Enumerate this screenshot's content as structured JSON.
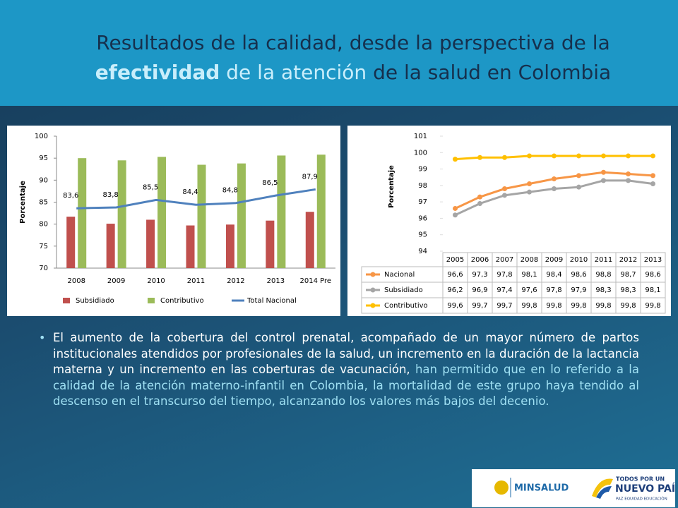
{
  "title": {
    "line1": "Resultados de la calidad, desde la perspectiva de la",
    "line2_bold": "efectividad",
    "line2_light": " de la atención",
    "line2_dark": " de la salud en Colombia"
  },
  "chart_data": [
    {
      "type": "bar",
      "y_label": "Porcentaje",
      "categories": [
        "2008",
        "2009",
        "2010",
        "2011",
        "2012",
        "2013",
        "2014 Pre"
      ],
      "series": [
        {
          "name": "Subsidiado",
          "color": "#c0504d",
          "values": [
            81.7,
            80.1,
            81.0,
            79.7,
            79.9,
            80.8,
            82.8
          ]
        },
        {
          "name": "Contributivo",
          "color": "#9bbb59",
          "values": [
            95.0,
            94.5,
            95.3,
            93.5,
            93.8,
            95.6,
            95.8
          ]
        },
        {
          "name": "Total Nacional",
          "color": "#4f81bd",
          "type": "line",
          "values": [
            83.6,
            83.8,
            85.5,
            84.4,
            84.8,
            86.5,
            87.9
          ],
          "value_labels": [
            "83,6",
            "83,8",
            "85,5",
            "84,4",
            "84,8",
            "86,5",
            "87,9"
          ]
        }
      ],
      "ylim": [
        70,
        100
      ],
      "yticks": [
        70,
        75,
        80,
        85,
        90,
        95,
        100
      ],
      "legend": "bottom"
    },
    {
      "type": "line",
      "y_label": "Porcentaje",
      "categories": [
        "2005",
        "2006",
        "2007",
        "2008",
        "2009",
        "2010",
        "2011",
        "2012",
        "2013"
      ],
      "series": [
        {
          "name": "Nacional",
          "color": "#f79646",
          "values": [
            96.6,
            97.3,
            97.8,
            98.1,
            98.4,
            98.6,
            98.8,
            98.7,
            98.6
          ],
          "value_labels": [
            "96,6",
            "97,3",
            "97,8",
            "98,1",
            "98,4",
            "98,6",
            "98,8",
            "98,7",
            "98,6"
          ]
        },
        {
          "name": "Subsidiado",
          "color": "#a5a5a5",
          "values": [
            96.2,
            96.9,
            97.4,
            97.6,
            97.8,
            97.9,
            98.3,
            98.3,
            98.1
          ],
          "value_labels": [
            "96,2",
            "96,9",
            "97,4",
            "97,6",
            "97,8",
            "97,9",
            "98,3",
            "98,3",
            "98,1"
          ]
        },
        {
          "name": "Contributivo",
          "color": "#ffc000",
          "values": [
            99.6,
            99.7,
            99.7,
            99.8,
            99.8,
            99.8,
            99.8,
            99.8,
            99.8
          ],
          "value_labels": [
            "99,6",
            "99,7",
            "99,7",
            "99,8",
            "99,8",
            "99,8",
            "99,8",
            "99,8",
            "99,8"
          ]
        }
      ],
      "ylim": [
        94,
        101
      ],
      "yticks": [
        94,
        95,
        96,
        97,
        98,
        99,
        100,
        101
      ],
      "data_table": true
    }
  ],
  "paragraph": {
    "white": "El aumento de la cobertura del control prenatal, acompañado de un mayor número de partos institucionales atendidos por profesionales de la salud, un incremento en la duración de la lactancia materna y un incremento en las coberturas de vacunación,",
    "light": " han permitido que en lo referido a la calidad de la atención materno-infantil en Colombia, la mortalidad de este grupo haya tendido al descenso en el transcurso del tiempo, alcanzando los valores más bajos del decenio."
  },
  "logos": {
    "ministry": "MINSALUD",
    "slogan1": "TODOS POR UN",
    "slogan2": "NUEVO PAÍS",
    "slogan3": "PAZ  EQUIDAD  EDUCACIÓN"
  }
}
